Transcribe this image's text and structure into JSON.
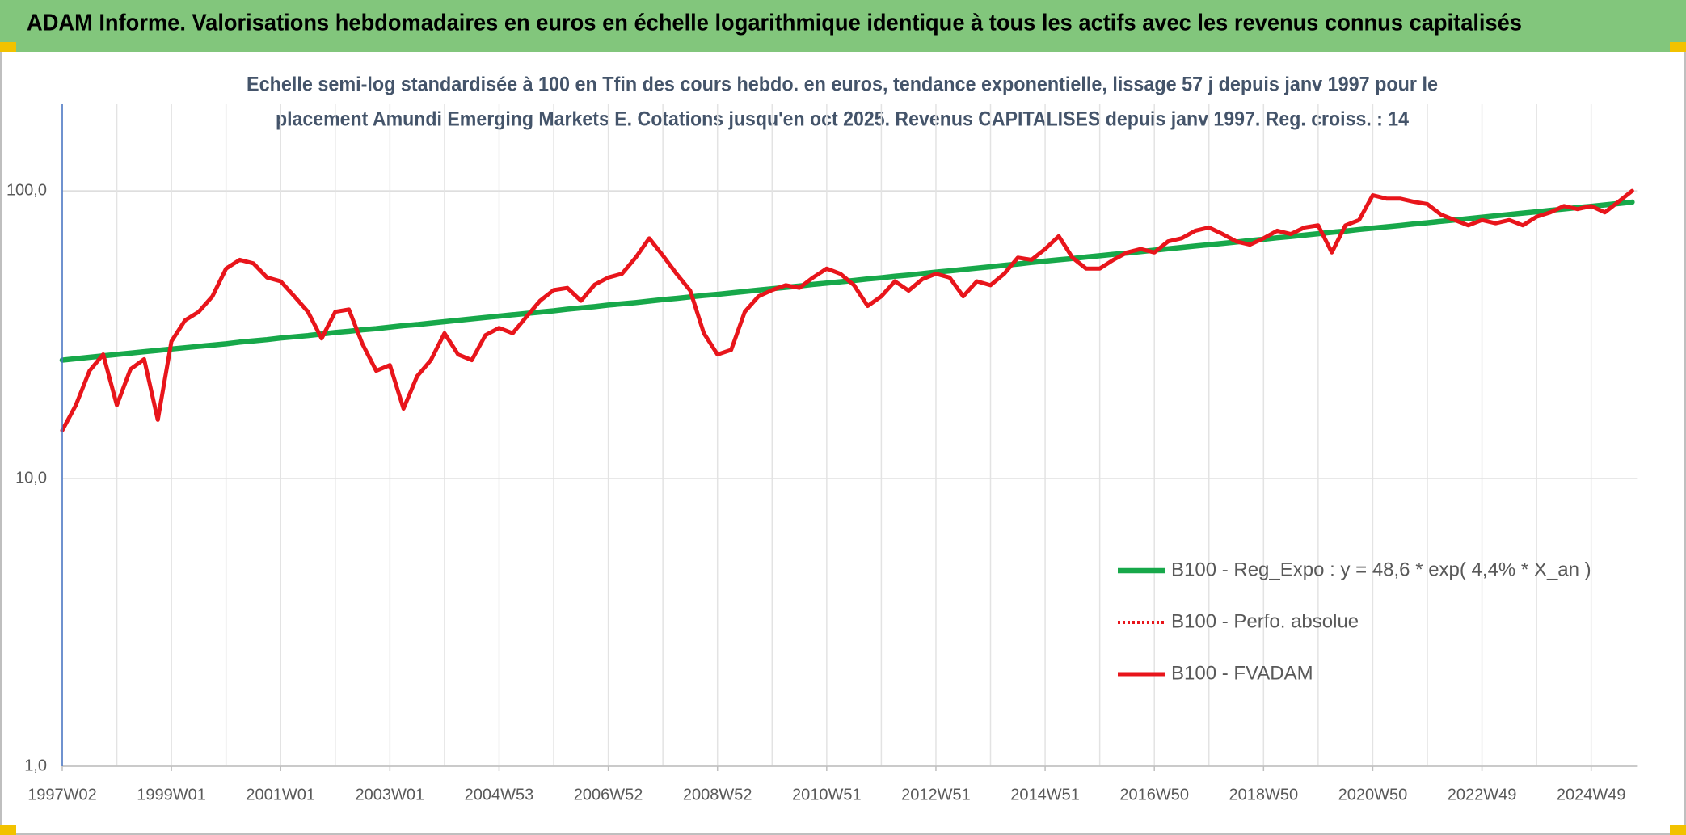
{
  "chart_data": {
    "type": "line",
    "title": "ADAM Informe. Valorisations hebdomadaires en euros en échelle logarithmique identique à tous les actifs avec les revenus connus capitalisés",
    "subtitle": [
      "Echelle semi-log standardisée à 100 en Tfin des cours hebdo. en euros, tendance exponentielle, lissage 57 j depuis janv 1997 pour le",
      "placement Amundi Emerging Markets E. Cotations jusqu'en oct 2025. Revenus CAPITALISES depuis janv 1997. Reg. croiss. : 14"
    ],
    "log_scale": true,
    "grid": true,
    "legend": "lower-right",
    "ylim": [
      1,
      200
    ],
    "yticks": [
      {
        "value": 1,
        "label": "1,0"
      },
      {
        "value": 10,
        "label": "10,0"
      },
      {
        "value": 100,
        "label": "100,0"
      }
    ],
    "categories": [
      "1997W02",
      null,
      null,
      null,
      null,
      null,
      null,
      null,
      "1999W01",
      null,
      null,
      null,
      null,
      null,
      null,
      null,
      "2001W01",
      null,
      null,
      null,
      null,
      null,
      null,
      null,
      "2003W01",
      null,
      null,
      null,
      null,
      null,
      null,
      null,
      "2004W53",
      null,
      null,
      null,
      null,
      null,
      null,
      null,
      "2006W52",
      null,
      null,
      null,
      null,
      null,
      null,
      null,
      "2008W52",
      null,
      null,
      null,
      null,
      null,
      null,
      null,
      "2010W51",
      null,
      null,
      null,
      null,
      null,
      null,
      null,
      "2012W51",
      null,
      null,
      null,
      null,
      null,
      null,
      null,
      "2014W51",
      null,
      null,
      null,
      null,
      null,
      null,
      null,
      "2016W50",
      null,
      null,
      null,
      null,
      null,
      null,
      null,
      "2018W50",
      null,
      null,
      null,
      null,
      null,
      null,
      null,
      "2020W50",
      null,
      null,
      null,
      null,
      null,
      null,
      null,
      "2022W49",
      null,
      null,
      null,
      null,
      null,
      null,
      null,
      "2024W49",
      null,
      null,
      null
    ],
    "series": [
      {
        "name": "B100 - Reg_Expo : y = 48,6 * exp( 4,4% *  X_an )",
        "color": "#17a84a",
        "line_style": "solid",
        "line_width": 6.5,
        "values": [
          25.8,
          26.1,
          26.4,
          26.7,
          27.0,
          27.3,
          27.6,
          27.9,
          28.2,
          28.5,
          28.8,
          29.1,
          29.4,
          29.8,
          30.1,
          30.4,
          30.8,
          31.1,
          31.4,
          31.8,
          32.2,
          32.5,
          32.9,
          33.2,
          33.6,
          34.0,
          34.3,
          34.7,
          35.1,
          35.5,
          35.9,
          36.3,
          36.7,
          37.1,
          37.5,
          37.9,
          38.3,
          38.8,
          39.2,
          39.6,
          40.1,
          40.5,
          40.9,
          41.4,
          41.9,
          42.3,
          42.8,
          43.3,
          43.7,
          44.2,
          44.7,
          45.2,
          45.7,
          46.2,
          46.7,
          47.3,
          47.8,
          48.3,
          48.8,
          49.4,
          49.9,
          50.5,
          51.0,
          51.6,
          52.2,
          52.7,
          53.3,
          53.9,
          54.5,
          55.1,
          55.7,
          56.4,
          57.0,
          57.6,
          58.2,
          58.9,
          59.5,
          60.2,
          60.8,
          61.5,
          62.2,
          62.9,
          63.6,
          64.3,
          65.0,
          65.7,
          66.4,
          67.2,
          67.9,
          68.7,
          69.4,
          70.2,
          71.0,
          71.8,
          72.5,
          73.4,
          74.2,
          75.0,
          75.8,
          76.7,
          77.5,
          78.4,
          79.2,
          80.1,
          81.0,
          81.9,
          82.8,
          83.7,
          84.6,
          85.6,
          86.5,
          87.5,
          88.4,
          89.4,
          90.4,
          91.4
        ]
      },
      {
        "name": "B100 - Perfo. absolue",
        "color": "#e8151b",
        "line_style": "dotted",
        "line_width": 4,
        "values": [
          14.7,
          18,
          23.7,
          27,
          18,
          24,
          26,
          16,
          30,
          35.5,
          38,
          43,
          53.7,
          57.6,
          56,
          50,
          48.5,
          43,
          38,
          30.7,
          38,
          38.7,
          29.3,
          23.7,
          24.8,
          17.5,
          22.7,
          25.8,
          32,
          27,
          25.8,
          31.5,
          33.4,
          32,
          36.5,
          41.5,
          45.2,
          46,
          41.5,
          47.2,
          50,
          51.5,
          58.6,
          68.4,
          59.6,
          51.5,
          45,
          32,
          27,
          28,
          38,
          43,
          45.2,
          47,
          46,
          50,
          53.7,
          51.5,
          47,
          39.8,
          43,
          48.5,
          45,
          49.3,
          51.5,
          50,
          43,
          48.5,
          47,
          51.5,
          58.6,
          57.6,
          62.8,
          69.6,
          58.6,
          53.7,
          53.7,
          57.6,
          61.1,
          62.8,
          61.1,
          66.7,
          68.4,
          72.7,
          74.6,
          70.8,
          66.7,
          65,
          68.4,
          72.7,
          70.8,
          74.6,
          75.9,
          61.1,
          75.9,
          79.2,
          96.6,
          94,
          94,
          91.7,
          90,
          82.7,
          79.2,
          75.9,
          79.2,
          77.2,
          79.2,
          75.9,
          81.3,
          84.2,
          88.6,
          86.4,
          88.6,
          84.2,
          91.7,
          100
        ]
      },
      {
        "name": "B100 - FVADAM",
        "color": "#e8151b",
        "line_style": "solid",
        "line_width": 5,
        "values": [
          14.7,
          18,
          23.7,
          27,
          18,
          24,
          26,
          16,
          30,
          35.5,
          38,
          43,
          53.7,
          57.6,
          56,
          50,
          48.5,
          43,
          38,
          30.7,
          38,
          38.7,
          29.3,
          23.7,
          24.8,
          17.5,
          22.7,
          25.8,
          32,
          27,
          25.8,
          31.5,
          33.4,
          32,
          36.5,
          41.5,
          45.2,
          46,
          41.5,
          47.2,
          50,
          51.5,
          58.6,
          68.4,
          59.6,
          51.5,
          45,
          32,
          27,
          28,
          38,
          43,
          45.2,
          47,
          46,
          50,
          53.7,
          51.5,
          47,
          39.8,
          43,
          48.5,
          45,
          49.3,
          51.5,
          50,
          43,
          48.5,
          47,
          51.5,
          58.6,
          57.6,
          62.8,
          69.6,
          58.6,
          53.7,
          53.7,
          57.6,
          61.1,
          62.8,
          61.1,
          66.7,
          68.4,
          72.7,
          74.6,
          70.8,
          66.7,
          65,
          68.4,
          72.7,
          70.8,
          74.6,
          75.9,
          61.1,
          75.9,
          79.2,
          96.6,
          94,
          94,
          91.7,
          90,
          82.7,
          79.2,
          75.9,
          79.2,
          77.2,
          79.2,
          75.9,
          81.3,
          84.2,
          88.6,
          86.4,
          88.6,
          84.2,
          91.7,
          100
        ]
      }
    ]
  }
}
